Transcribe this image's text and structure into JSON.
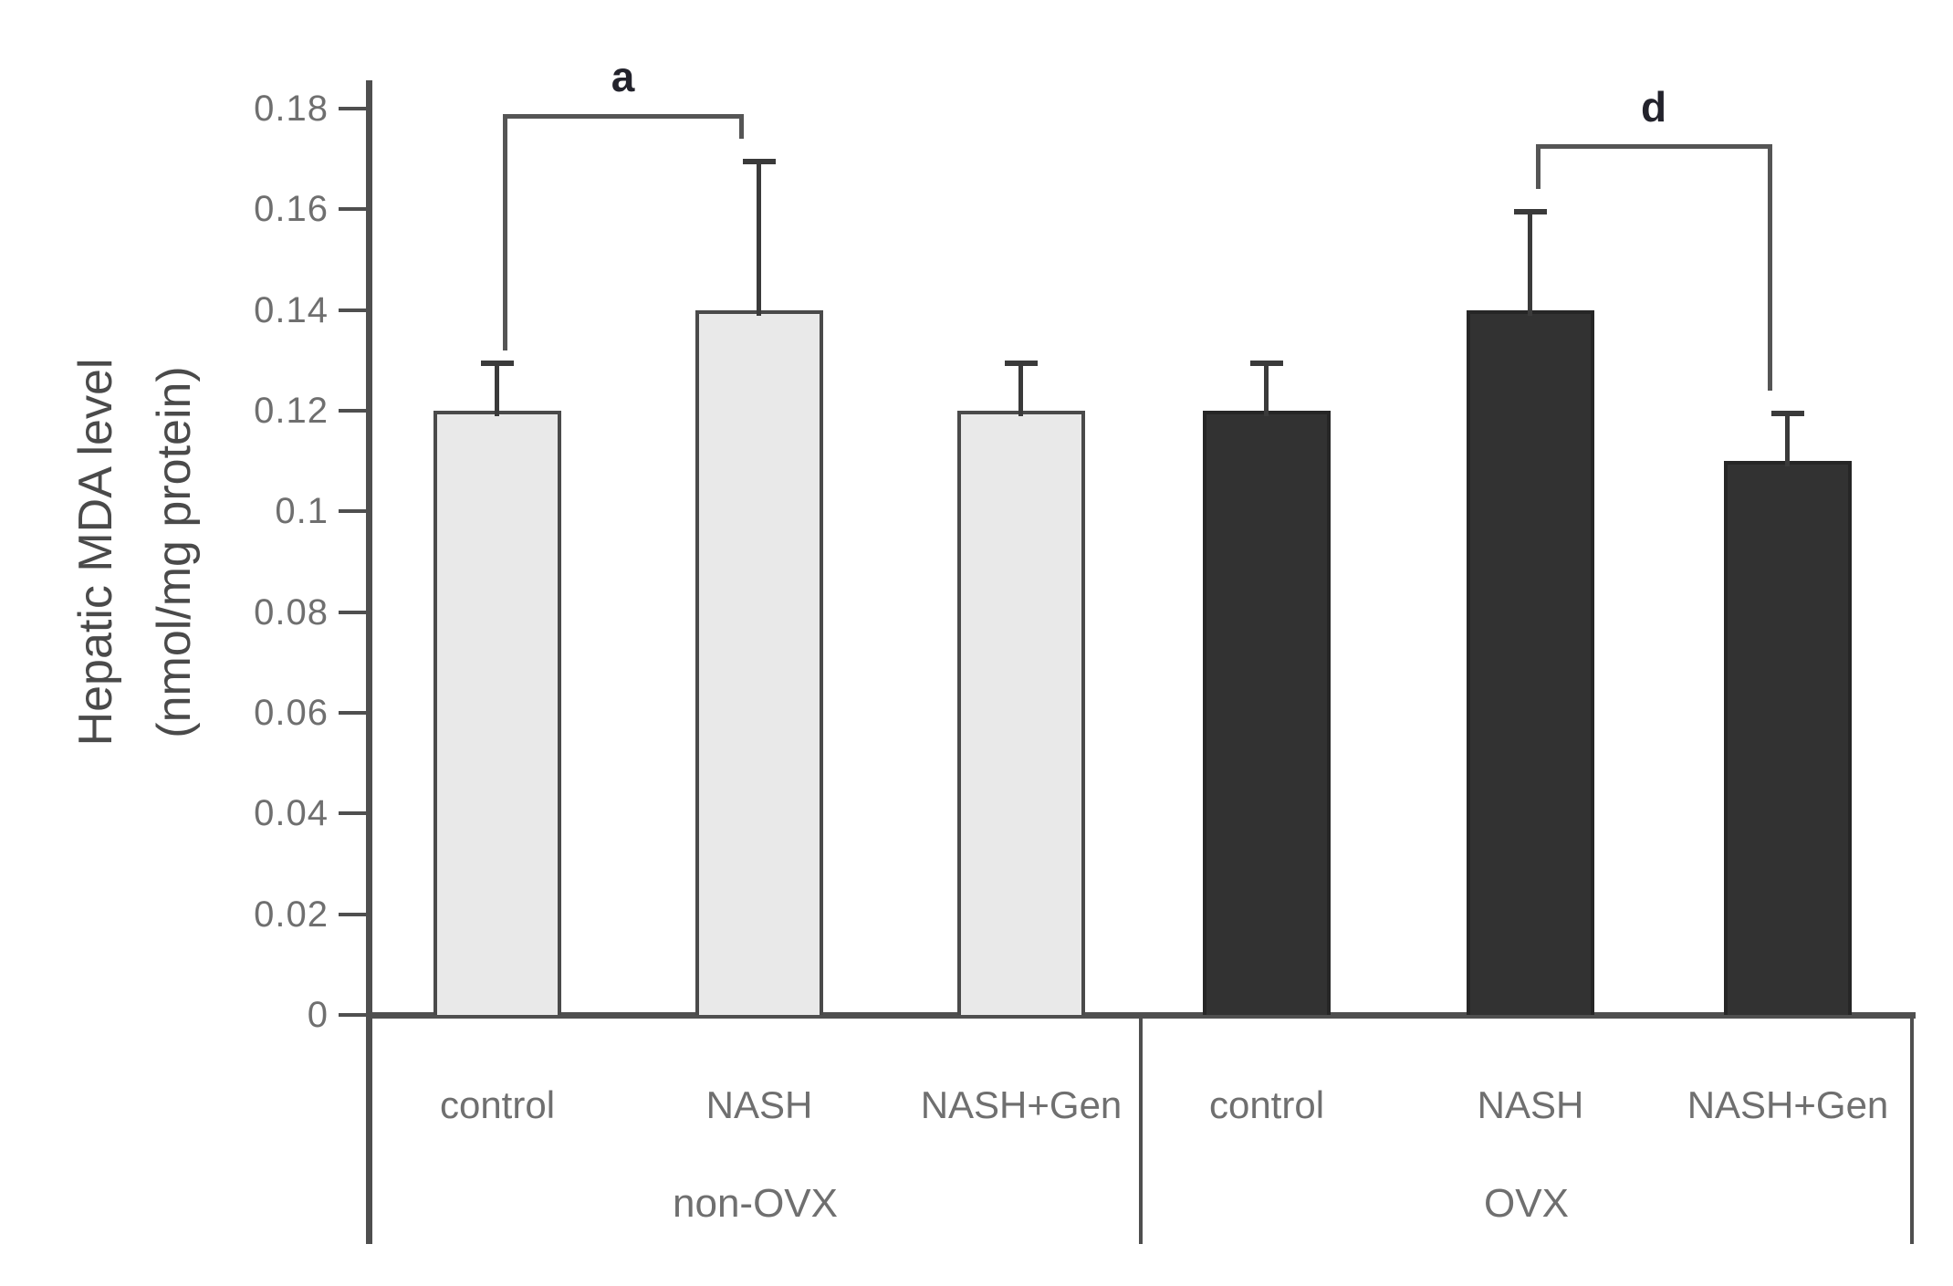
{
  "chart_data": {
    "type": "bar",
    "title": "",
    "xlabel": "",
    "ylabel_lines": [
      "Hepatic MDA level",
      "(nmol/mg protein)"
    ],
    "ylim": [
      0,
      0.18
    ],
    "grid": false,
    "legend_position": "none",
    "yticks": [
      {
        "value": 0,
        "label": "0"
      },
      {
        "value": 0.02,
        "label": "0.02"
      },
      {
        "value": 0.04,
        "label": "0.04"
      },
      {
        "value": 0.06,
        "label": "0.06"
      },
      {
        "value": 0.08,
        "label": "0.08"
      },
      {
        "value": 0.1,
        "label": "0.1"
      },
      {
        "value": 0.12,
        "label": "0.12"
      },
      {
        "value": 0.14,
        "label": "0.14"
      },
      {
        "value": 0.16,
        "label": "0.16"
      },
      {
        "value": 0.18,
        "label": "0.18"
      }
    ],
    "groups": [
      {
        "label": "non-OVX",
        "bar_style": "light",
        "categories": [
          "control",
          "NASH",
          "NASH+Gen"
        ],
        "values": [
          0.12,
          0.14,
          0.12
        ],
        "error_tops": [
          0.13,
          0.17,
          0.13
        ]
      },
      {
        "label": "OVX",
        "bar_style": "dark",
        "categories": [
          "control",
          "NASH",
          "NASH+Gen"
        ],
        "values": [
          0.12,
          0.14,
          0.11
        ],
        "error_tops": [
          0.13,
          0.16,
          0.12
        ]
      }
    ],
    "significance_brackets": [
      {
        "label": "a",
        "group": 0,
        "from_bar": 0,
        "to_bar": 1,
        "top_value": 0.179,
        "from_end_value": 0.132,
        "to_end_value": 0.174
      },
      {
        "label": "d",
        "group": 1,
        "from_bar": 1,
        "to_bar": 2,
        "top_value": 0.173,
        "from_end_value": 0.164,
        "to_end_value": 0.124
      }
    ],
    "colors": {
      "background": "#ffffff",
      "axis": "#4f4f4f",
      "tick_text": "#6f6f6f",
      "category_text": "#6f6f6f",
      "group_text": "#6f6f6f",
      "ylabel_text": "#4a4a4a",
      "light_bar_fill": "#e9e9e9",
      "light_bar_border": "#4a4a4a",
      "dark_bar_fill": "#323232",
      "dark_bar_border": "#262626",
      "error_bar": "#3a3a3a",
      "bracket": "#555555",
      "significance_text": "#23232c"
    }
  }
}
